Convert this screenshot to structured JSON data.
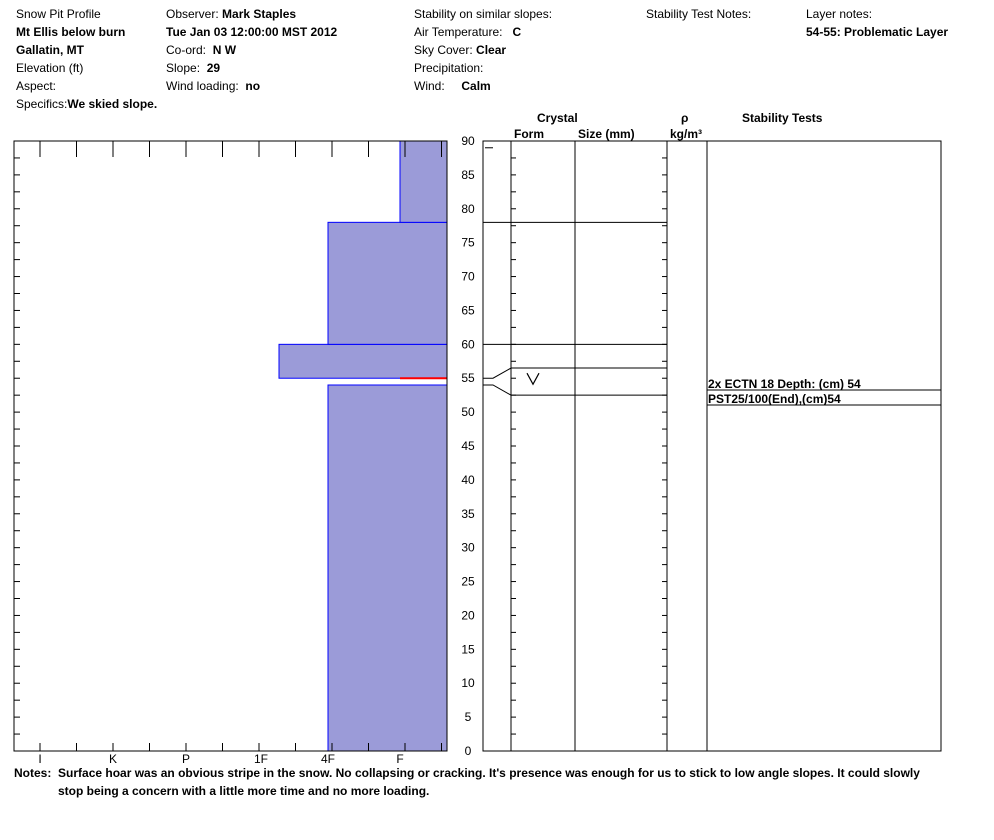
{
  "header": {
    "title": "Snow Pit Profile",
    "location": "Mt Ellis  below burn",
    "region": "Gallatin, MT",
    "elevation_label": "Elevation (ft)",
    "aspect_label": "Aspect:",
    "specifics_label": "Specifics:",
    "specifics_value": "We skied slope.",
    "observer_label": "Observer:",
    "observer_value": "Mark Staples",
    "date": "Tue Jan 03 12:00:00 MST 2012",
    "coord_label": "Co-ord:",
    "coord_value": "N  W",
    "slope_label": "Slope:",
    "slope_value": "29",
    "wind_loading_label": "Wind loading:",
    "wind_loading_value": "no",
    "stability_label": "Stability on similar slopes:",
    "air_temp_label": "Air Temperature:",
    "air_temp_value": "C",
    "sky_label": "Sky Cover:",
    "sky_value": "Clear",
    "precip_label": "Precipitation:",
    "wind_label": "Wind:",
    "wind_value": "Calm",
    "stability_notes_label": "Stability Test Notes:",
    "layer_notes_label": "Layer notes:",
    "layer_notes_value": "54-55: Problematic Layer"
  },
  "columns": {
    "crystal": "Crystal",
    "form": "Form",
    "size": "Size (mm)",
    "rho": "ρ",
    "density_unit": "kg/m³",
    "stability_tests": "Stability Tests"
  },
  "chart_data": {
    "type": "bar",
    "title": "",
    "ylabel": "",
    "ylim": [
      0,
      90
    ],
    "y_ticks": [
      0,
      5,
      10,
      15,
      20,
      25,
      30,
      35,
      40,
      45,
      50,
      55,
      60,
      65,
      70,
      75,
      80,
      85,
      90
    ],
    "hardness_ticks": [
      "I",
      "K",
      "P",
      "1F",
      "4F",
      "F"
    ],
    "layers": [
      {
        "bottom": 0,
        "top": 54,
        "hardness": "4F"
      },
      {
        "bottom": 55,
        "top": 60,
        "hardness": "1F+"
      },
      {
        "bottom": 60,
        "top": 78,
        "hardness": "4F"
      },
      {
        "bottom": 78,
        "top": 90,
        "hardness": "F"
      }
    ],
    "weak_layer": {
      "depth": 55,
      "color": "#ff0000"
    },
    "layer_boundaries": [
      78,
      60,
      56.5,
      52.5
    ],
    "crystal_forms": [
      {
        "depth": 55,
        "symbol": "V"
      }
    ],
    "fill_color": "#9b9bd8",
    "edge_color": "#0000ff"
  },
  "stability_tests": [
    {
      "text": "2x ECTN 18   Depth: (cm) 54"
    },
    {
      "text": "PST25/100(End),(cm)54"
    }
  ],
  "notes": {
    "label": "Notes:",
    "line1": "Surface hoar was an obvious stripe in the snow.  No collapsing or cracking.  It's presence was enough for us to stick to low angle slopes.  It could slowly",
    "line2": "stop being a concern with a little more time and no more loading."
  }
}
